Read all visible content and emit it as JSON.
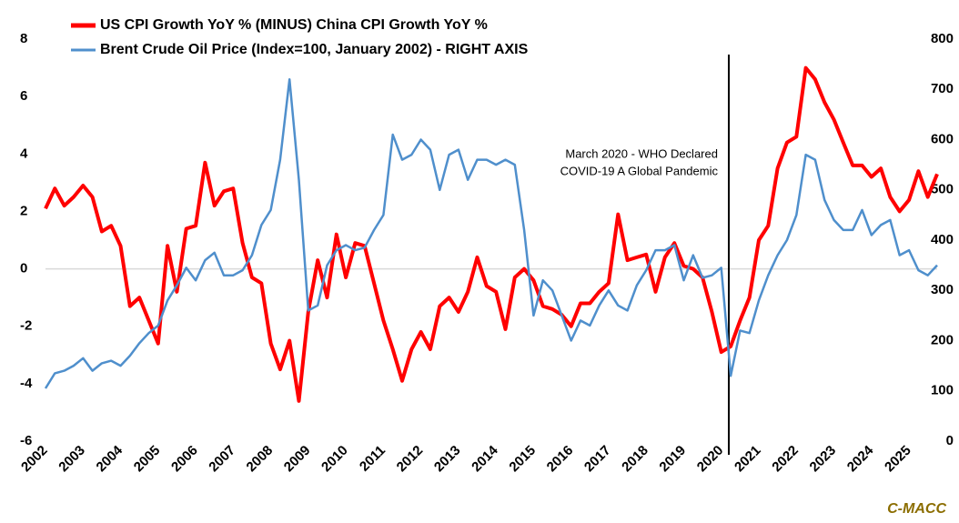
{
  "chart_data": {
    "type": "line",
    "legend": "top-left",
    "zero_line": true,
    "x": [
      2002,
      2002.25,
      2002.5,
      2002.75,
      2003,
      2003.25,
      2003.5,
      2003.75,
      2004,
      2004.25,
      2004.5,
      2004.75,
      2005,
      2005.25,
      2005.5,
      2005.75,
      2006,
      2006.25,
      2006.5,
      2006.75,
      2007,
      2007.25,
      2007.5,
      2007.75,
      2008,
      2008.25,
      2008.5,
      2008.75,
      2009,
      2009.25,
      2009.5,
      2009.75,
      2010,
      2010.25,
      2010.5,
      2010.75,
      2011,
      2011.25,
      2011.5,
      2011.75,
      2012,
      2012.25,
      2012.5,
      2012.75,
      2013,
      2013.25,
      2013.5,
      2013.75,
      2014,
      2014.25,
      2014.5,
      2014.75,
      2015,
      2015.25,
      2015.5,
      2015.75,
      2016,
      2016.25,
      2016.5,
      2016.75,
      2017,
      2017.25,
      2017.5,
      2017.75,
      2018,
      2018.25,
      2018.5,
      2018.75,
      2019,
      2019.25,
      2019.5,
      2019.75,
      2020,
      2020.25,
      2020.5,
      2020.75,
      2021,
      2021.25,
      2021.5,
      2021.75,
      2022,
      2022.25,
      2022.5,
      2022.75,
      2023,
      2023.25,
      2023.5,
      2023.75,
      2024,
      2024.25,
      2024.5,
      2024.75,
      2025,
      2025.25,
      2025.5,
      2025.75
    ],
    "series": [
      {
        "name": "US CPI Growth YoY % (MINUS) China CPI Growth YoY %",
        "color": "#ff0000",
        "values": [
          2.1,
          2.8,
          2.2,
          2.5,
          2.9,
          2.5,
          1.3,
          1.5,
          0.8,
          -1.3,
          -1.0,
          -1.8,
          -2.6,
          0.8,
          -0.8,
          1.4,
          1.5,
          3.7,
          2.2,
          2.7,
          2.8,
          0.9,
          -0.3,
          -0.5,
          -2.6,
          -3.5,
          -2.5,
          -4.6,
          -1.5,
          0.3,
          -1.0,
          1.2,
          -0.3,
          0.9,
          0.8,
          -0.5,
          -1.8,
          -2.8,
          -3.9,
          -2.8,
          -2.2,
          -2.8,
          -1.3,
          -1.0,
          -1.5,
          -0.8,
          0.4,
          -0.6,
          -0.8,
          -2.1,
          -0.3,
          0.0,
          -0.4,
          -1.3,
          -1.4,
          -1.6,
          -2.0,
          -1.2,
          -1.2,
          -0.8,
          -0.5,
          1.9,
          0.3,
          0.4,
          0.5,
          -0.8,
          0.4,
          0.9,
          0.1,
          0,
          -0.3,
          -1.5,
          -2.9,
          -2.7,
          -1.8,
          -1.0,
          1.0,
          1.5,
          3.5,
          4.4,
          4.6,
          7.0,
          6.6,
          5.8,
          5.2,
          4.4,
          3.6,
          3.6,
          3.2,
          3.5,
          2.5,
          2.0,
          2.4,
          3.4,
          2.5,
          3.3
        ]
      },
      {
        "name": "Brent Crude Oil Price (Index=100, January 2002) - RIGHT AXIS",
        "color": "#4f8fcc",
        "axis": "y2",
        "values": [
          105,
          135,
          140,
          150,
          165,
          140,
          155,
          160,
          150,
          170,
          195,
          215,
          230,
          280,
          310,
          345,
          320,
          360,
          375,
          330,
          330,
          340,
          370,
          430,
          460,
          560,
          720,
          520,
          260,
          270,
          350,
          380,
          390,
          380,
          385,
          420,
          450,
          610,
          560,
          570,
          600,
          580,
          500,
          570,
          580,
          520,
          560,
          560,
          550,
          560,
          550,
          420,
          250,
          320,
          300,
          250,
          200,
          240,
          230,
          270,
          300,
          270,
          260,
          310,
          340,
          380,
          380,
          390,
          320,
          370,
          325,
          330,
          345,
          130,
          220,
          215,
          280,
          330,
          370,
          400,
          450,
          570,
          560,
          480,
          440,
          420,
          420,
          460,
          410,
          430,
          440,
          370,
          380,
          340,
          330,
          350
        ]
      }
    ],
    "xlim": [
      2002,
      2025.75
    ],
    "xticks": [
      2002,
      2003,
      2004,
      2005,
      2006,
      2007,
      2008,
      2009,
      2010,
      2011,
      2012,
      2013,
      2014,
      2015,
      2016,
      2017,
      2018,
      2019,
      2020,
      2021,
      2022,
      2023,
      2024,
      2025
    ],
    "ylim": [
      -6,
      8
    ],
    "yticks": [
      -6,
      -4,
      -2,
      0,
      2,
      4,
      6,
      8
    ],
    "y2lim": [
      0,
      800
    ],
    "y2ticks": [
      0,
      100,
      200,
      300,
      400,
      500,
      600,
      700,
      800
    ],
    "annotations": [
      {
        "x": 2020.2,
        "text": [
          "March 2020 - WHO Declared",
          "COVID-19 A Global Pandemic"
        ]
      }
    ],
    "watermark": "C-MACC"
  }
}
